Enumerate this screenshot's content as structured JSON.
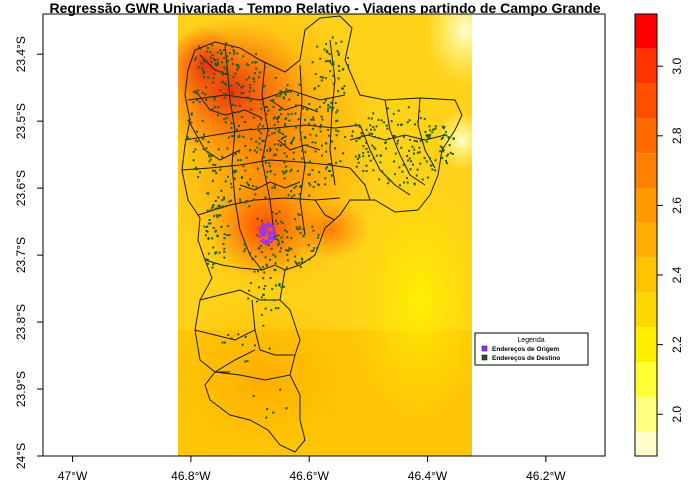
{
  "map": {
    "title": "Regressão GWR Univariada - Tempo Relativo - Viagens partindo de Campo Grande",
    "x_axis": {
      "range": [
        -47.05,
        -46.1
      ],
      "ticks": [
        {
          "value": -47.0,
          "label": "47°W"
        },
        {
          "value": -46.8,
          "label": "46.8°W"
        },
        {
          "value": -46.6,
          "label": "46.6°W"
        },
        {
          "value": -46.4,
          "label": "46.4°W"
        },
        {
          "value": -46.2,
          "label": "46.2°W"
        }
      ]
    },
    "y_axis": {
      "range": [
        -24.0,
        -23.34
      ],
      "ticks": [
        {
          "value": -23.4,
          "label": "23.4°S"
        },
        {
          "value": -23.5,
          "label": "23.5°S"
        },
        {
          "value": -23.6,
          "label": "23.6°S"
        },
        {
          "value": -23.7,
          "label": "23.7°S"
        },
        {
          "value": -23.8,
          "label": "23.8°S"
        },
        {
          "value": -23.9,
          "label": "23.9°S"
        },
        {
          "value": -24.0,
          "label": "24°S"
        }
      ]
    },
    "colorbar": {
      "range": [
        1.88,
        3.15
      ],
      "ticks": [
        {
          "value": 2.0,
          "label": "2.0"
        },
        {
          "value": 2.2,
          "label": "2.2"
        },
        {
          "value": 2.4,
          "label": "2.4"
        },
        {
          "value": 2.6,
          "label": "2.6"
        },
        {
          "value": 2.8,
          "label": "2.8"
        },
        {
          "value": 3.0,
          "label": "3.0"
        }
      ],
      "bands": [
        {
          "from": 1.88,
          "to": 1.95,
          "color": "#FFFFCC"
        },
        {
          "from": 1.95,
          "to": 2.05,
          "color": "#FFFF80"
        },
        {
          "from": 2.05,
          "to": 2.15,
          "color": "#FFFF33"
        },
        {
          "from": 2.15,
          "to": 2.25,
          "color": "#FFEE00"
        },
        {
          "from": 2.25,
          "to": 2.35,
          "color": "#FFD700"
        },
        {
          "from": 2.35,
          "to": 2.45,
          "color": "#FFC400"
        },
        {
          "from": 2.45,
          "to": 2.55,
          "color": "#FFB000"
        },
        {
          "from": 2.55,
          "to": 2.65,
          "color": "#FF9900"
        },
        {
          "from": 2.65,
          "to": 2.75,
          "color": "#FF8000"
        },
        {
          "from": 2.75,
          "to": 2.85,
          "color": "#FF6A00"
        },
        {
          "from": 2.85,
          "to": 2.95,
          "color": "#FF5000"
        },
        {
          "from": 2.95,
          "to": 3.05,
          "color": "#FF3300"
        },
        {
          "from": 3.05,
          "to": 3.15,
          "color": "#FF0000"
        }
      ]
    },
    "legend": {
      "title": "Legenda",
      "items": [
        {
          "label": "Endereços de Origem",
          "color": "#9933FF"
        },
        {
          "label": "Endereços de Destino",
          "color": "#1B5E20"
        }
      ]
    }
  }
}
